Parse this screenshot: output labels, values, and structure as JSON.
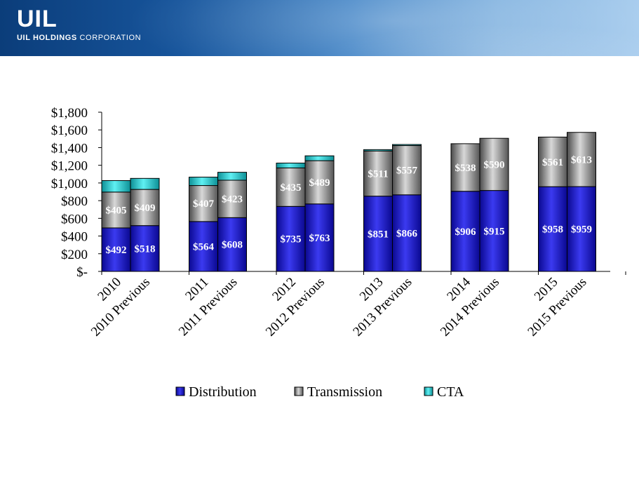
{
  "header": {
    "logo_mark": "UIL",
    "company_bold": "UIL HOLDINGS",
    "company_light": "CORPORATION"
  },
  "colors": {
    "distribution": "#1a18c8",
    "transmission": "#8f8f8f",
    "cta": "#20c6cc"
  },
  "chart_data": {
    "type": "bar",
    "stacked": true,
    "categories": [
      "2010",
      "2010 Previous",
      "2011",
      "2011 Previous",
      "2012",
      "2012 Previous",
      "2013",
      "2013 Previous",
      "2014",
      "2014  Previous",
      "2015",
      "2015  Previous"
    ],
    "series": [
      {
        "name": "Distribution",
        "values": [
          492,
          518,
          564,
          608,
          735,
          763,
          851,
          866,
          906,
          915,
          958,
          959
        ],
        "labels": [
          "$492",
          "$518",
          "$564",
          "$608",
          "$735",
          "$763",
          "$851",
          "$866",
          "$906",
          "$915",
          "$958",
          "$959"
        ]
      },
      {
        "name": "Transmission",
        "values": [
          405,
          409,
          407,
          423,
          435,
          489,
          511,
          557,
          538,
          590,
          561,
          613
        ],
        "labels": [
          "$405",
          "$409",
          "$407",
          "$423",
          "$435",
          "$489",
          "$511",
          "$557",
          "$538",
          "$590",
          "$561",
          "$613"
        ]
      },
      {
        "name": "CTA",
        "values": [
          130,
          125,
          95,
          90,
          55,
          55,
          15,
          12,
          0,
          0,
          0,
          0
        ]
      }
    ],
    "ylim": [
      0,
      1800
    ],
    "yticks": [
      "$-",
      "$200",
      "$400",
      "$600",
      "$800",
      "$1,000",
      "$1,200",
      "$1,400",
      "$1,600",
      "$1,800"
    ],
    "legend_position": "bottom",
    "grid": false
  }
}
